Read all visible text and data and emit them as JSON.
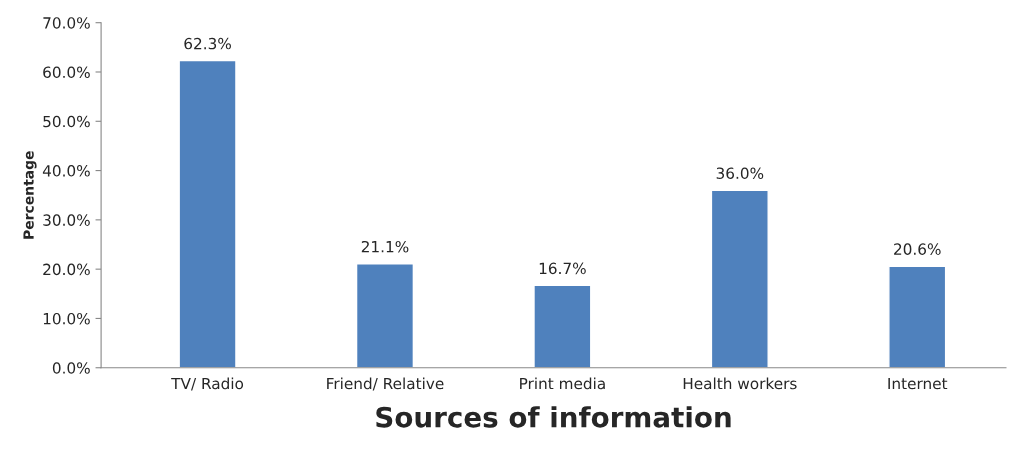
{
  "chart_data": {
    "type": "bar",
    "xlabel": "Sources of information",
    "ylabel": "Percentage",
    "categories": [
      "TV/ Radio",
      "Friend/ Relative",
      "Print media",
      "Health workers",
      "Internet"
    ],
    "values": [
      62.3,
      21.1,
      16.7,
      36.0,
      20.6
    ],
    "value_labels": [
      "62.3%",
      "21.1%",
      "16.7%",
      "36.0%",
      "20.6%"
    ],
    "color": "#4f81bd",
    "ylim": [
      0,
      70
    ],
    "yticks": [
      {
        "value": 0,
        "label": "0.0%"
      },
      {
        "value": 10,
        "label": "10.0%"
      },
      {
        "value": 20,
        "label": "20.0%"
      },
      {
        "value": 30,
        "label": "30.0%"
      },
      {
        "value": 40,
        "label": "40.0%"
      },
      {
        "value": 50,
        "label": "50.0%"
      },
      {
        "value": 60,
        "label": "60.0%"
      },
      {
        "value": 70,
        "label": "70.0%"
      }
    ],
    "grid": false,
    "legend": false
  }
}
